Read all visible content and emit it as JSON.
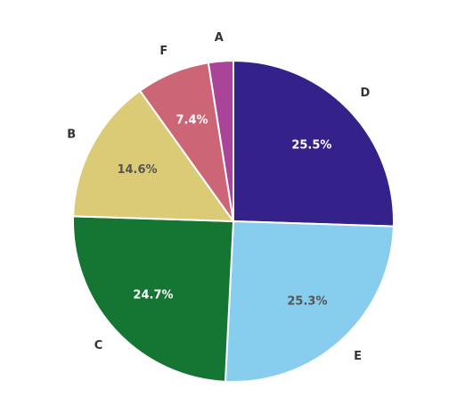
{
  "chart_data": {
    "type": "pie",
    "title": "",
    "start_angle_deg": 0,
    "direction": "clockwise",
    "slices": [
      {
        "label": "D",
        "value": 25.5,
        "value_label": "25.5%",
        "color": "#35218a",
        "value_label_color": "#ffffff"
      },
      {
        "label": "E",
        "value": 25.3,
        "value_label": "25.3%",
        "color": "#87cdee",
        "value_label_color": "#555555"
      },
      {
        "label": "C",
        "value": 24.7,
        "value_label": "24.7%",
        "color": "#147632",
        "value_label_color": "#ffffff"
      },
      {
        "label": "B",
        "value": 14.6,
        "value_label": "14.6%",
        "color": "#dbcb77",
        "value_label_color": "#555555"
      },
      {
        "label": "F",
        "value": 7.4,
        "value_label": "7.4%",
        "color": "#cc6677",
        "value_label_color": "#ffffff"
      },
      {
        "label": "A",
        "value": 2.5,
        "value_label": "",
        "color": "#aa4499",
        "value_label_color": "#ffffff"
      }
    ],
    "legend": "none",
    "category_label_color": "#333333",
    "slice_border_color": "#ffffff"
  }
}
